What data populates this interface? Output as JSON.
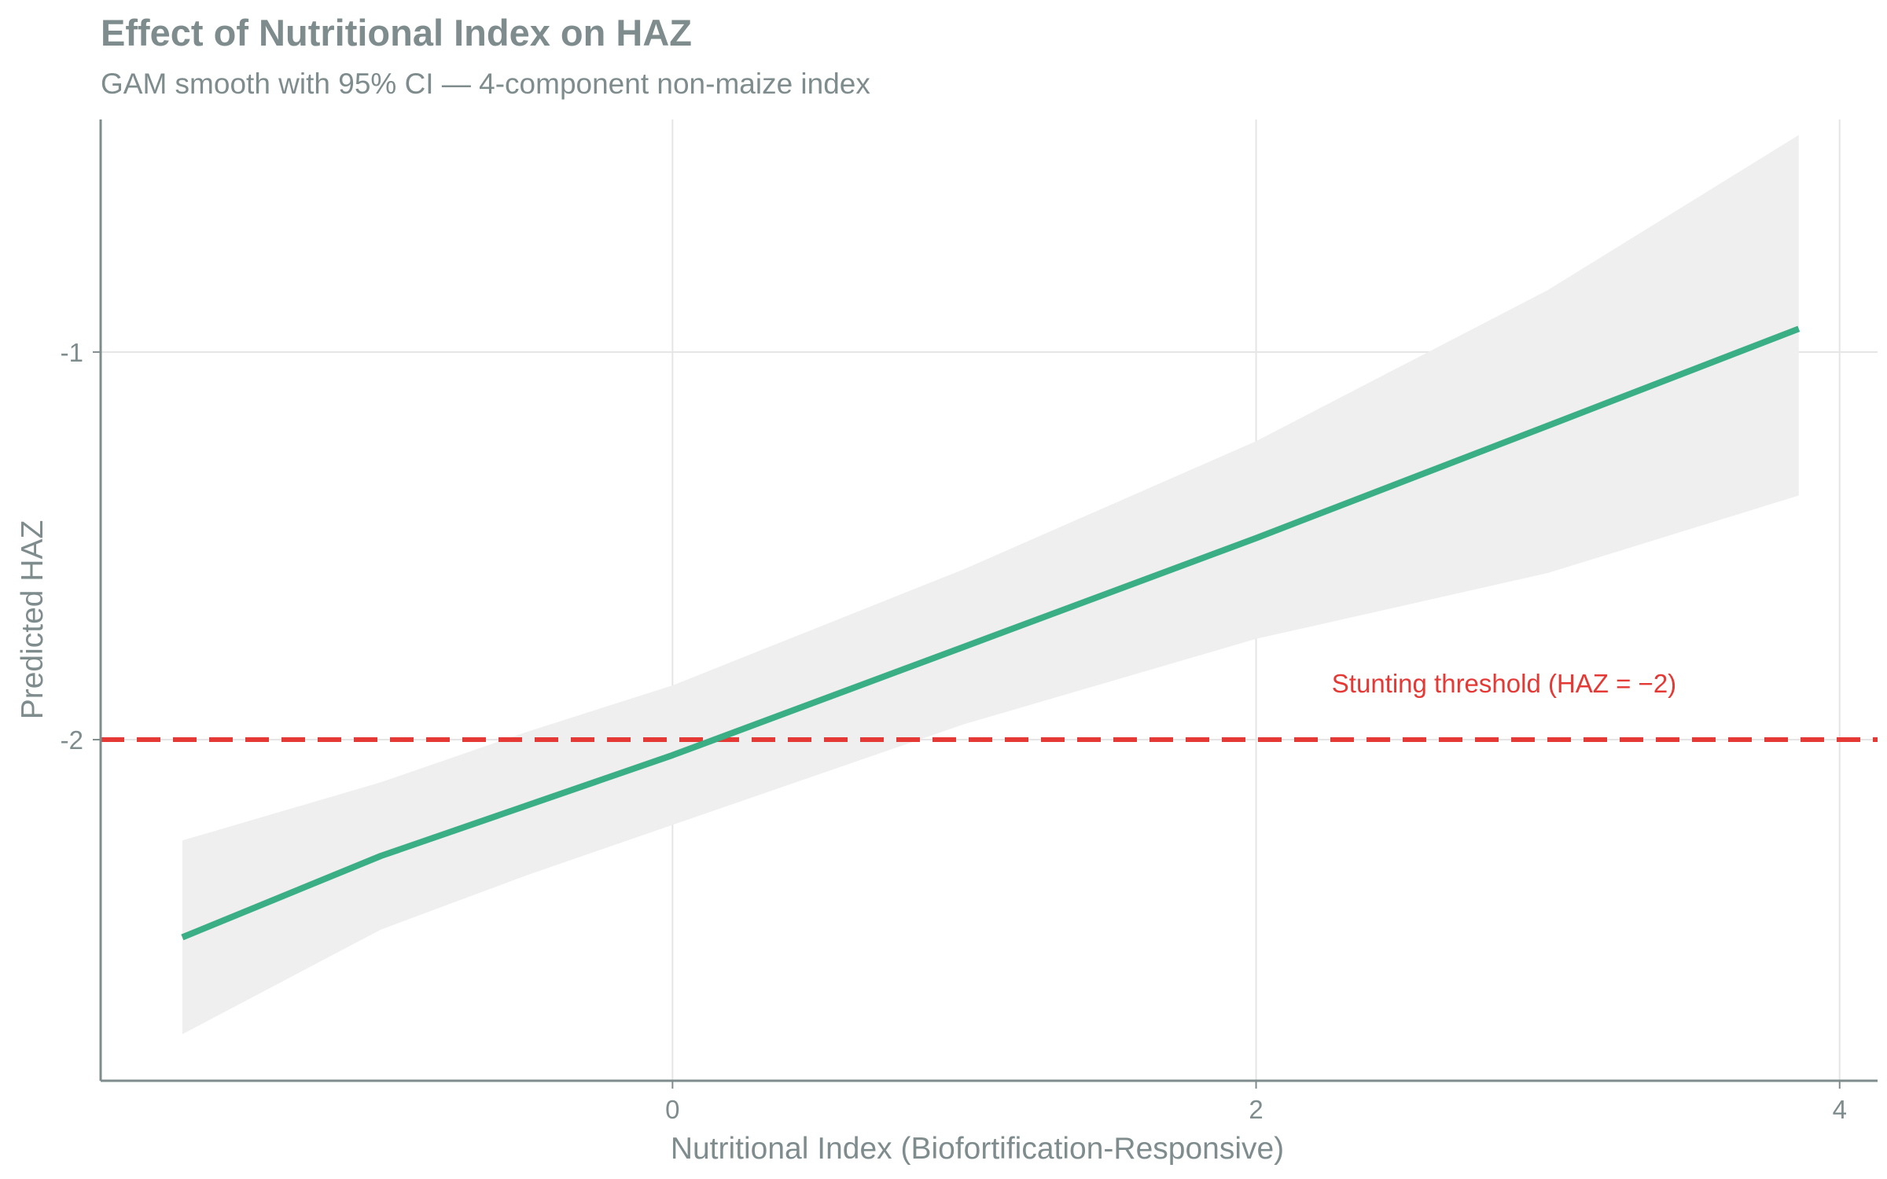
{
  "title": "Effect of Nutritional Index on HAZ",
  "subtitle": "GAM smooth with 95% CI — 4-component non-maize index",
  "colors": {
    "line": "#3aae84",
    "ci_band": "#efefef",
    "threshold": "#e53935",
    "grid": "#e5e5e5",
    "axis": "#7f8c8d",
    "text": "#7f8c8d"
  },
  "chart_data": {
    "type": "line",
    "title": "Effect of Nutritional Index on HAZ",
    "subtitle": "GAM smooth with 95% CI — 4-component non-maize index",
    "xlabel": "Nutritional Index (Biofortification-Responsive)",
    "ylabel": "Predicted HAZ",
    "xlim": [
      -1.96,
      4.13
    ],
    "ylim": [
      -2.88,
      -0.4
    ],
    "xticks": [
      0,
      2,
      4
    ],
    "xtick_labels": [
      "0",
      "2",
      "4"
    ],
    "yticks": [
      -1,
      -2
    ],
    "ytick_labels": [
      "-1",
      "-2"
    ],
    "grid": true,
    "series": [
      {
        "role": "fit",
        "x": [
          -1.68,
          -1.0,
          0.0,
          1.0,
          2.0,
          3.0,
          3.86
        ],
        "y": [
          -2.51,
          -2.3,
          -2.04,
          -1.76,
          -1.48,
          -1.19,
          -0.94
        ]
      }
    ],
    "confidence_band": {
      "label": "95% CI",
      "x": [
        -1.68,
        -1.0,
        -0.5,
        0.0,
        1.0,
        2.0,
        3.0,
        3.86
      ],
      "lower": [
        -2.76,
        -2.49,
        -2.35,
        -2.22,
        -1.96,
        -1.74,
        -1.57,
        -1.37
      ],
      "upper": [
        -2.26,
        -2.11,
        -1.98,
        -1.86,
        -1.56,
        -1.23,
        -0.84,
        -0.44
      ]
    },
    "reference_lines": [
      {
        "axis": "y",
        "value": -2,
        "style": "dashed",
        "label": "Stunting threshold (HAZ = −2)"
      }
    ]
  }
}
